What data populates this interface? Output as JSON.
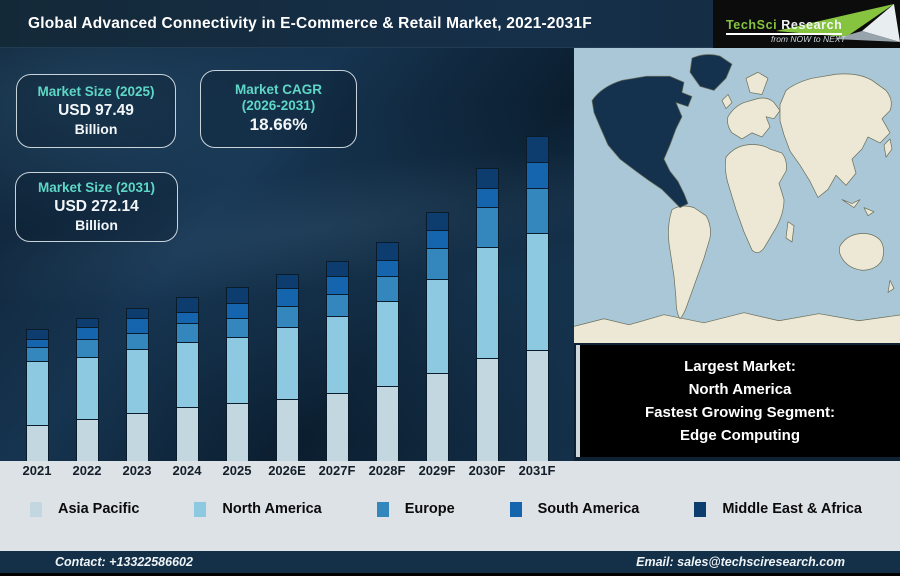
{
  "header": {
    "title": "Global Advanced Connectivity in E-Commerce & Retail Market, 2021-2031F",
    "logo": {
      "brand_primary": "TechSci",
      "brand_secondary": "Research",
      "tagline": "from NOW to NEXT"
    }
  },
  "kpis": [
    {
      "title": "Market Size (2025)",
      "value": "USD 97.49",
      "unit": "Billion"
    },
    {
      "title": "Market CAGR",
      "subtitle": "(2026-2031)",
      "value": "18.66%"
    },
    {
      "title": "Market Size (2031)",
      "value": "USD 272.14",
      "unit": "Billion"
    }
  ],
  "callout": {
    "lines": [
      "Largest Market:",
      "North America",
      "Fastest Growing Segment:",
      "Edge Computing"
    ]
  },
  "map": {
    "highlight_region": "North America",
    "ocean_color": "#a9c7d6",
    "land_color": "#ece8d5",
    "highlight_color": "#14324e",
    "outline_color": "#6b6e58"
  },
  "chart_data": {
    "type": "bar",
    "stacked": true,
    "title": "Global Advanced Connectivity in E-Commerce & Retail Market, 2021-2031F",
    "categories": [
      "2021",
      "2022",
      "2023",
      "2024",
      "2025",
      "2026E",
      "2027F",
      "2028F",
      "2029F",
      "2030F",
      "2031F"
    ],
    "series": [
      {
        "name": "Asia Pacific",
        "color": "#c3d7e0",
        "values": [
          36,
          42,
          48,
          54,
          58,
          62,
          68,
          75,
          88,
          103,
          111
        ]
      },
      {
        "name": "North America",
        "color": "#8ec9e2",
        "values": [
          64,
          62,
          64,
          65,
          66,
          72,
          77,
          85,
          94,
          111,
          117
        ]
      },
      {
        "name": "Europe",
        "color": "#3387bd",
        "values": [
          14,
          18,
          16,
          19,
          19,
          21,
          22,
          25,
          31,
          40,
          45
        ]
      },
      {
        "name": "South America",
        "color": "#1565ae",
        "values": [
          8,
          12,
          15,
          11,
          15,
          18,
          18,
          16,
          18,
          19,
          26
        ]
      },
      {
        "name": "Middle East & Africa",
        "color": "#0d3c6e",
        "values": [
          10,
          9,
          10,
          15,
          16,
          14,
          15,
          18,
          18,
          20,
          26
        ]
      }
    ],
    "units": "relative bar height in px (illustrative stacked bars, no value axis shown)",
    "xlabel": "",
    "ylabel": "",
    "legend_position": "bottom"
  },
  "footer": {
    "contact": "Contact: +13322586602",
    "email": "Email: sales@techsciresearch.com"
  },
  "colors": {
    "header_bg": "#15293a",
    "panel_bg": "#0f2335",
    "strip_bg": "#dde2e6",
    "footer_bg": "#133048",
    "accent_teal": "#5ed7c6",
    "logo_green": "#86c440"
  }
}
